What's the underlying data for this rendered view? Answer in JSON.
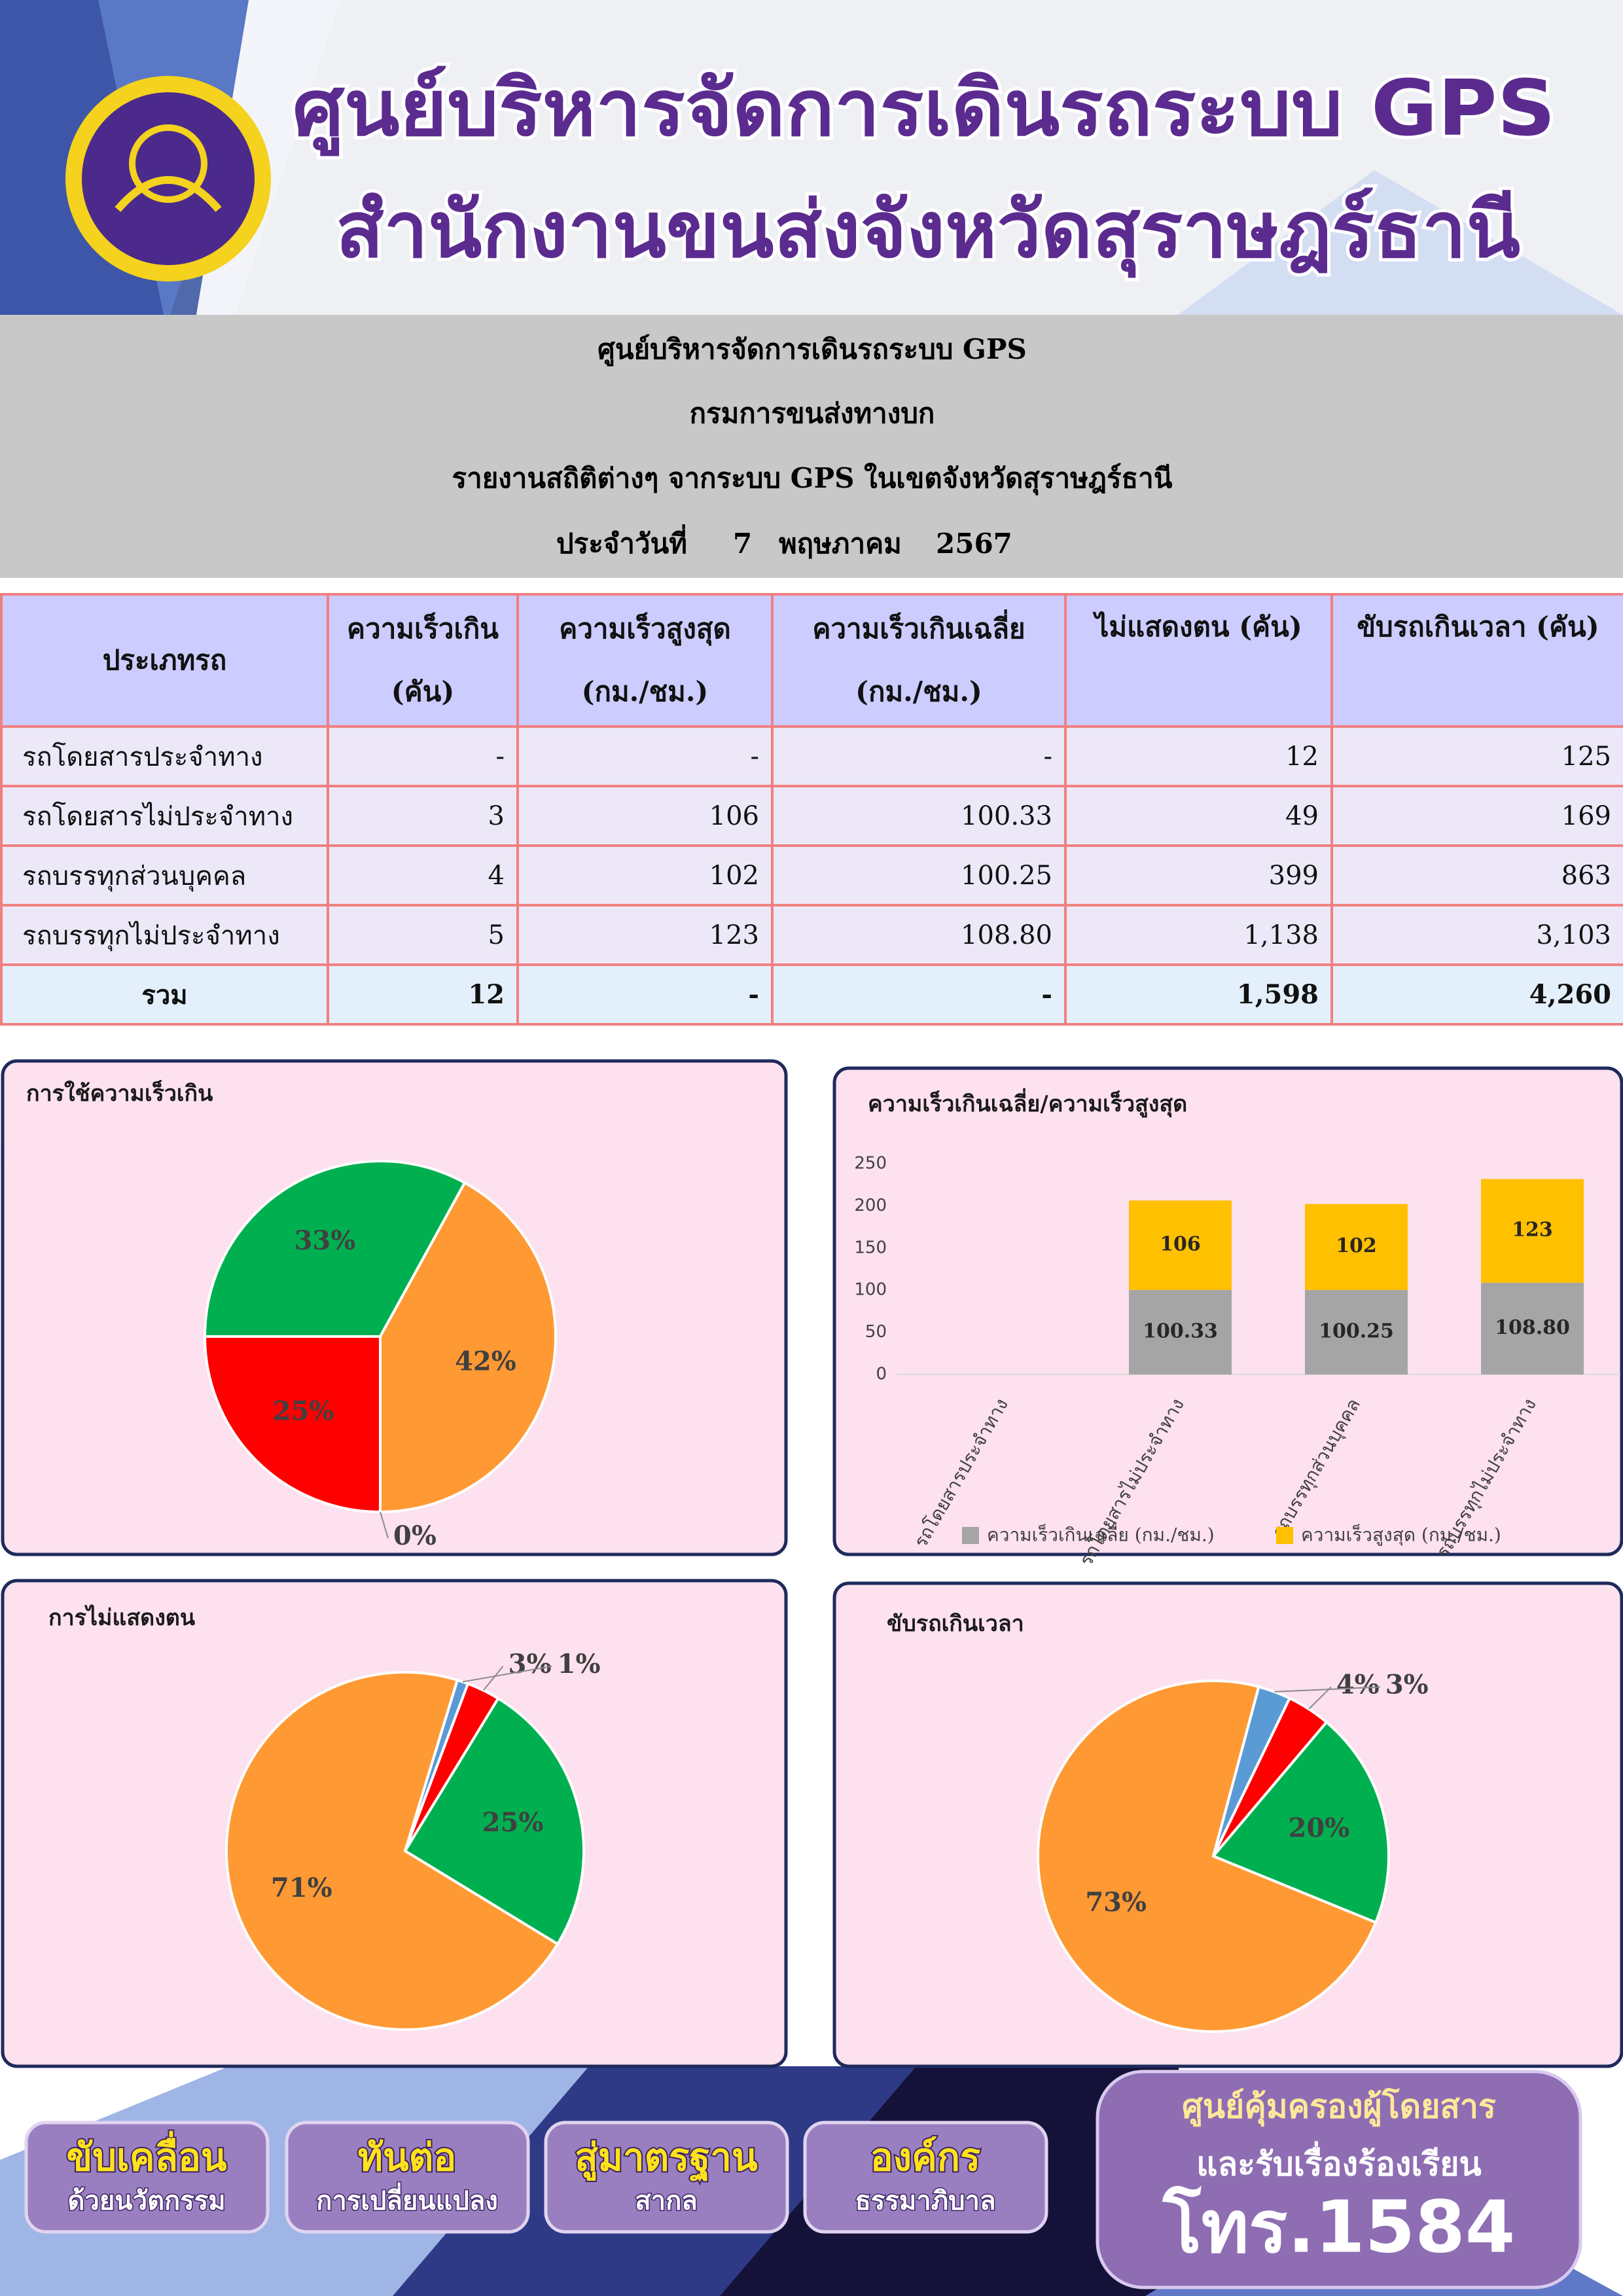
{
  "header": {
    "title_line1": "ศูนย์บริหารจัดการเดินรถระบบ GPS",
    "title_line2": "สำนักงานขนส่งจังหวัดสุราษฎร์ธานี"
  },
  "report": {
    "lines": [
      "ศูนย์บริหารจัดการเดินรถระบบ GPS",
      "กรมการขนส่งทางบก",
      "รายงานสถิติต่างๆ จากระบบ GPS ในเขตจังหวัดสุราษฎร์ธานี"
    ],
    "date": {
      "label": "ประจำวันที่",
      "day": "7",
      "month": "พฤษภาคม",
      "year": "2567"
    }
  },
  "table": {
    "headers": [
      [
        "ประเภทรถ"
      ],
      [
        "ความเร็วเกิน",
        "(คัน)"
      ],
      [
        "ความเร็วสูงสุด",
        "(กม./ชม.)"
      ],
      [
        "ความเร็วเกินเฉลี่ย",
        "(กม./ชม.)"
      ],
      [
        "ไม่แสดงตน (คัน)"
      ],
      [
        "ขับรถเกินเวลา (คัน)"
      ]
    ],
    "rows": [
      [
        "รถโดยสารประจำทาง",
        "-",
        "-",
        "-",
        "12",
        "125"
      ],
      [
        "รถโดยสารไม่ประจำทาง",
        "3",
        "106",
        "100.33",
        "49",
        "169"
      ],
      [
        "รถบรรทุกส่วนบุคคล",
        "4",
        "102",
        "100.25",
        "399",
        "863"
      ],
      [
        "รถบรรทุกไม่ประจำทาง",
        "5",
        "123",
        "108.80",
        "1,138",
        "3,103"
      ]
    ],
    "total": [
      "รวม",
      "12",
      "-",
      "-",
      "1,598",
      "4,260"
    ]
  },
  "chart_data": [
    {
      "type": "pie",
      "title": "การใช้ความเร็วเกิน",
      "values": [
        0,
        25,
        33,
        42
      ],
      "value_labels": [
        "0%",
        "25%",
        "33%",
        "42%"
      ],
      "colors": [
        "#5b9bd5",
        "#ff0000",
        "#00b050",
        "#ff9933"
      ]
    },
    {
      "type": "bar",
      "stacked": true,
      "title": "ความเร็วเกินเฉลี่ย/ความเร็วสูงสุด",
      "categories": [
        "รถโดยสารประจำทาง",
        "รถโดยสารไม่ประจำทาง",
        "รถบรรทุกส่วนบุคคล",
        "รถบรรทุกไม่ประจำทาง"
      ],
      "series": [
        {
          "name": "ความเร็วเกินเฉลี่ย (กม./ชม.)",
          "color": "#a5a5a5",
          "values": [
            0,
            100.33,
            100.25,
            108.8
          ],
          "value_labels": [
            null,
            "100.33",
            "100.25",
            "108.80"
          ]
        },
        {
          "name": "ความเร็วสูงสุด (กม./ชม.)",
          "color": "#ffc000",
          "values": [
            0,
            106,
            102,
            123
          ]
        }
      ],
      "ylim": [
        0,
        250
      ],
      "yticks": [
        0,
        50,
        100,
        150,
        200,
        250
      ],
      "legend": "bottom"
    },
    {
      "type": "pie",
      "title": "การไม่แสดงตน",
      "values": [
        1,
        3,
        25,
        71
      ],
      "value_labels": [
        "1%",
        "3%",
        "25%",
        "71%"
      ],
      "colors": [
        "#5b9bd5",
        "#ff0000",
        "#00b050",
        "#ff9933"
      ]
    },
    {
      "type": "pie",
      "title": "ขับรถเกินเวลา",
      "values": [
        3,
        4,
        20,
        73
      ],
      "value_labels": [
        "3%",
        "4%",
        "20%",
        "73%"
      ],
      "colors": [
        "#5b9bd5",
        "#ff0000",
        "#00b050",
        "#ff9933"
      ]
    }
  ],
  "footer": {
    "buttons": [
      [
        "ขับเคลื่อน",
        "ด้วยนวัตกรรม"
      ],
      [
        "ทันต่อ",
        "การเปลี่ยนแปลง"
      ],
      [
        "สู่มาตรฐาน",
        "สากล"
      ],
      [
        "องค์กร",
        "ธรรมาภิบาล"
      ]
    ],
    "hotline": [
      "ศูนย์คุ้มครองผู้โดยสาร",
      "และรับเรื่องร้องเรียน",
      "โทร.1584"
    ]
  }
}
